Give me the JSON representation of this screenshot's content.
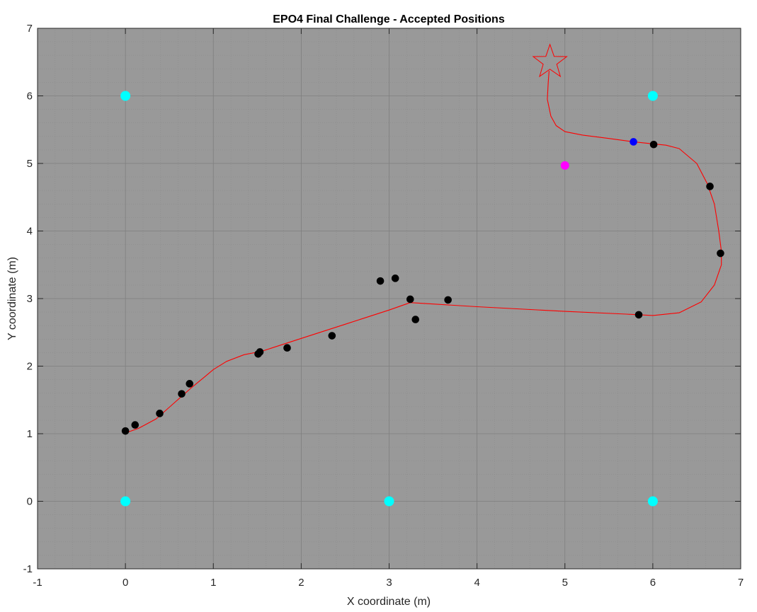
{
  "chart_data": {
    "type": "scatter",
    "title": "EPO4 Final Challenge - Accepted Positions",
    "xlabel": "X coordinate (m)",
    "ylabel": "Y coordinate (m)",
    "xlim": [
      -1,
      7
    ],
    "ylim": [
      -1,
      7
    ],
    "xticks": [
      "-1",
      "0",
      "1",
      "2",
      "3",
      "4",
      "5",
      "6",
      "7"
    ],
    "yticks": [
      "-1",
      "0",
      "1",
      "2",
      "3",
      "4",
      "5",
      "6",
      "7"
    ],
    "grid": true,
    "minor_grid": true,
    "background_color": "#999999",
    "series": [
      {
        "marker": "circle",
        "color": "#00ffff",
        "points": [
          [
            0,
            6
          ],
          [
            6,
            6
          ],
          [
            0,
            0
          ],
          [
            3,
            0
          ],
          [
            6,
            0
          ]
        ]
      },
      {
        "marker": "circle",
        "color": "#ff00ff",
        "points": [
          [
            5.0,
            4.97
          ]
        ]
      },
      {
        "marker": "circle",
        "color": "#000000",
        "points": [
          [
            0.0,
            1.04
          ],
          [
            0.11,
            1.13
          ],
          [
            0.39,
            1.3
          ],
          [
            0.64,
            1.59
          ],
          [
            0.73,
            1.74
          ],
          [
            1.51,
            2.18
          ],
          [
            1.53,
            2.21
          ],
          [
            1.84,
            2.27
          ],
          [
            2.35,
            2.45
          ],
          [
            2.9,
            3.26
          ],
          [
            3.07,
            3.3
          ],
          [
            3.24,
            2.99
          ],
          [
            3.3,
            2.69
          ],
          [
            3.67,
            2.98
          ],
          [
            5.84,
            2.76
          ],
          [
            6.77,
            3.67
          ],
          [
            6.65,
            4.66
          ],
          [
            6.01,
            5.28
          ]
        ]
      },
      {
        "marker": "circle",
        "color": "#0000ff",
        "points": [
          [
            5.78,
            5.32
          ]
        ]
      },
      {
        "marker": "line",
        "color": "#ff0000",
        "points": [
          [
            0.0,
            1.01
          ],
          [
            0.15,
            1.08
          ],
          [
            0.35,
            1.22
          ],
          [
            0.55,
            1.45
          ],
          [
            0.75,
            1.68
          ],
          [
            0.9,
            1.84
          ],
          [
            1.0,
            1.95
          ],
          [
            1.15,
            2.07
          ],
          [
            1.35,
            2.17
          ],
          [
            1.55,
            2.22
          ],
          [
            2.0,
            2.41
          ],
          [
            2.5,
            2.62
          ],
          [
            3.0,
            2.83
          ],
          [
            3.24,
            2.94
          ],
          [
            4.0,
            2.88
          ],
          [
            5.0,
            2.81
          ],
          [
            5.7,
            2.77
          ],
          [
            6.0,
            2.75
          ],
          [
            6.3,
            2.79
          ],
          [
            6.55,
            2.95
          ],
          [
            6.7,
            3.2
          ],
          [
            6.78,
            3.5
          ],
          [
            6.78,
            3.7
          ],
          [
            6.75,
            4.0
          ],
          [
            6.7,
            4.4
          ],
          [
            6.62,
            4.7
          ],
          [
            6.5,
            5.0
          ],
          [
            6.3,
            5.22
          ],
          [
            6.15,
            5.27
          ],
          [
            6.0,
            5.29
          ],
          [
            5.78,
            5.32
          ],
          [
            5.5,
            5.37
          ],
          [
            5.2,
            5.42
          ],
          [
            5.0,
            5.47
          ],
          [
            4.9,
            5.56
          ],
          [
            4.84,
            5.7
          ],
          [
            4.8,
            5.95
          ],
          [
            4.81,
            6.2
          ],
          [
            4.82,
            6.37
          ]
        ]
      },
      {
        "marker": "star",
        "color": "#ff0000",
        "points": [
          [
            4.83,
            6.5
          ]
        ]
      }
    ]
  }
}
